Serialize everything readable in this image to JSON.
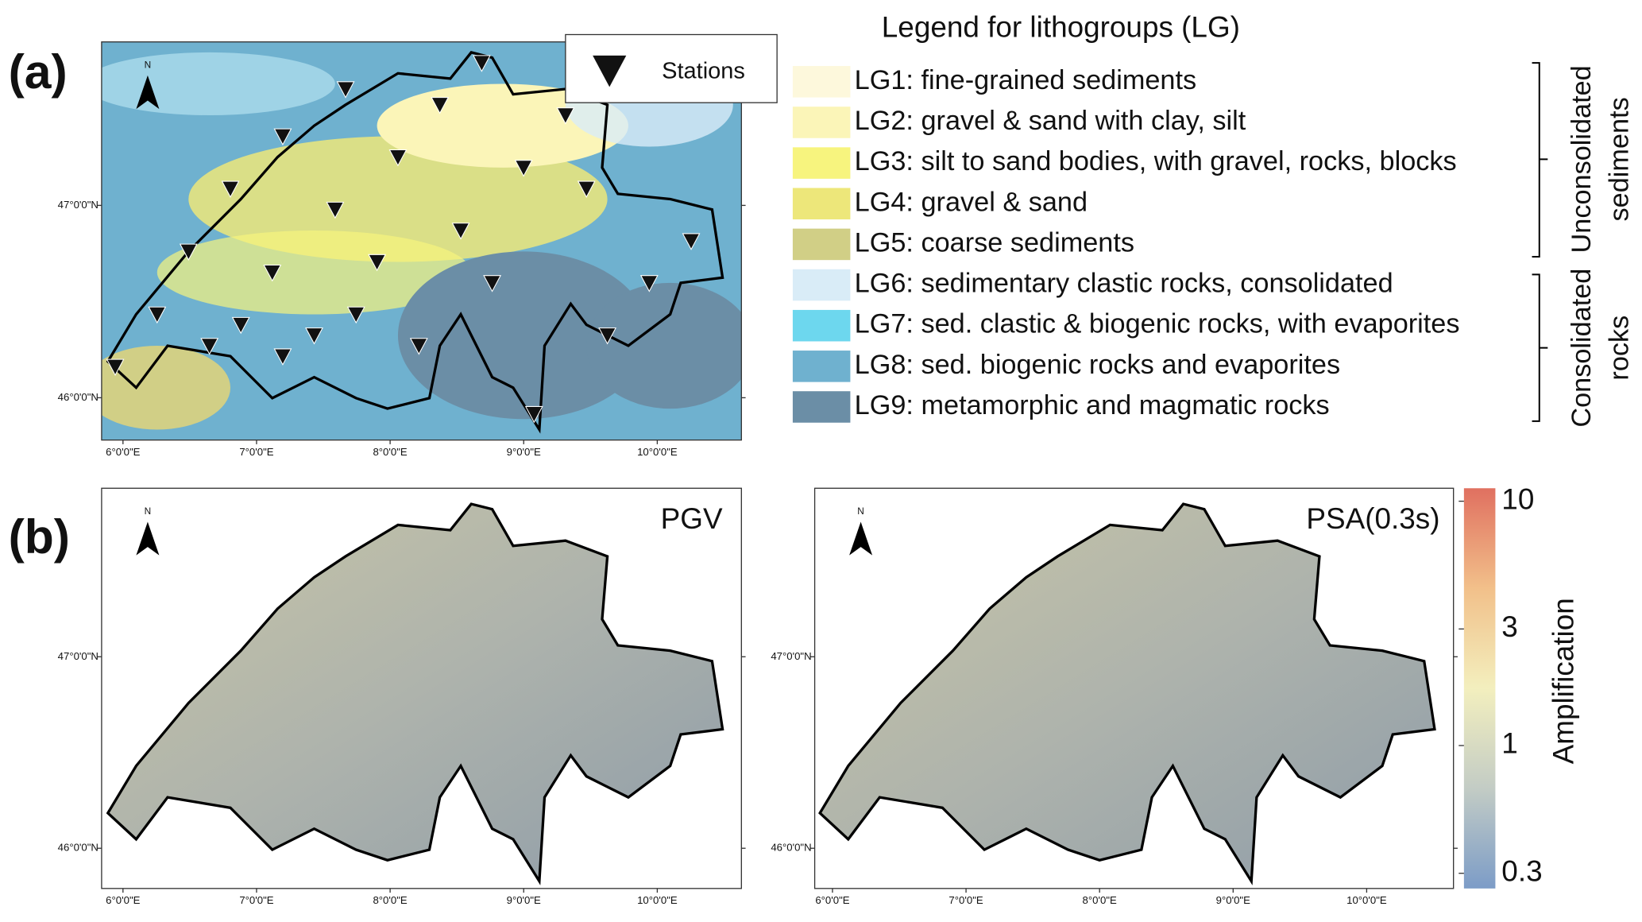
{
  "panels": [
    {
      "label": "(a)",
      "stations_legend": "Stations",
      "map": {
        "north": "N",
        "xlim": [
          5.84,
          10.63
        ],
        "ylim": [
          45.78,
          47.85
        ],
        "xticks": [
          {
            "value": 6,
            "label": "6°0'0\"E"
          },
          {
            "value": 7,
            "label": "7°0'0\"E"
          },
          {
            "value": 8,
            "label": "8°0'0\"E"
          },
          {
            "value": 9,
            "label": "9°0'0\"E"
          },
          {
            "value": 10,
            "label": "10°0'0\"E"
          }
        ],
        "yticks": [
          {
            "value": 47,
            "label": "47°0'0\"N"
          },
          {
            "value": 46,
            "label": "46°0'0\"N"
          }
        ]
      }
    },
    {
      "label": "(b)",
      "maps": [
        {
          "title": "PGV",
          "north": "N",
          "xlim": [
            5.84,
            10.63
          ],
          "ylim": [
            45.79,
            47.88
          ],
          "xticks": [
            {
              "value": 6,
              "label": "6°0'0\"E"
            },
            {
              "value": 7,
              "label": "7°0'0\"E"
            },
            {
              "value": 8,
              "label": "8°0'0\"E"
            },
            {
              "value": 9,
              "label": "9°0'0\"E"
            },
            {
              "value": 10,
              "label": "10°0'0\"E"
            }
          ],
          "yticks": [
            {
              "value": 47,
              "label": "47°0'0\"N"
            },
            {
              "value": 46,
              "label": "46°0'0\"N"
            }
          ]
        },
        {
          "title": "PSA(0.3s)",
          "north": "N",
          "xlim": [
            5.867,
            10.65
          ],
          "ylim": [
            45.79,
            47.88
          ],
          "xticks": [
            {
              "value": 6,
              "label": "6°0'0\"E"
            },
            {
              "value": 7,
              "label": "7°0'0\"E"
            },
            {
              "value": 8,
              "label": "8°0'0\"E"
            },
            {
              "value": 9,
              "label": "9°0'0\"E"
            },
            {
              "value": 10,
              "label": "10°0'0\"E"
            }
          ],
          "yticks": [
            {
              "value": 47,
              "label": "47°0'0\"N"
            },
            {
              "value": 46,
              "label": "46°0'0\"N"
            }
          ]
        }
      ],
      "colorbar": {
        "label": "Amplification",
        "log": true,
        "ylim": [
          0.26,
          11.3
        ],
        "ticks": [
          0.3,
          1,
          3,
          10
        ],
        "colors": [
          "#7c9cc7",
          "#c3ccc5",
          "#f3efbe",
          "#f2c08a",
          "#e07060"
        ]
      }
    }
  ],
  "lithology_legend": {
    "title": "Legend for lithogroups (LG)",
    "items": [
      {
        "name": "LG1: fine-grained sediments",
        "color": "#fdf8dc"
      },
      {
        "name": "LG2: gravel & sand with clay, silt",
        "color": "#fbf5b8"
      },
      {
        "name": "LG3: silt to sand bodies, with gravel, rocks, blocks",
        "color": "#f7f47e"
      },
      {
        "name": "LG4: gravel & sand",
        "color": "#ede77a"
      },
      {
        "name": "LG5: coarse sediments",
        "color": "#d1cf86"
      },
      {
        "name": "LG6: sedimentary clastic rocks, consolidated",
        "color": "#d9ecf7"
      },
      {
        "name": "LG7: sed. clastic & biogenic rocks, with evaporites",
        "color": "#6dd7ee"
      },
      {
        "name": "LG8: sed. biogenic rocks and evaporites",
        "color": "#6fb1cf"
      },
      {
        "name": "LG9: metamorphic and magmatic rocks",
        "color": "#6b8ea6"
      }
    ],
    "groups": [
      {
        "lines": [
          "Unconsolidated",
          "sediments"
        ]
      },
      {
        "lines": [
          "Consolidated",
          "rocks"
        ]
      }
    ]
  }
}
